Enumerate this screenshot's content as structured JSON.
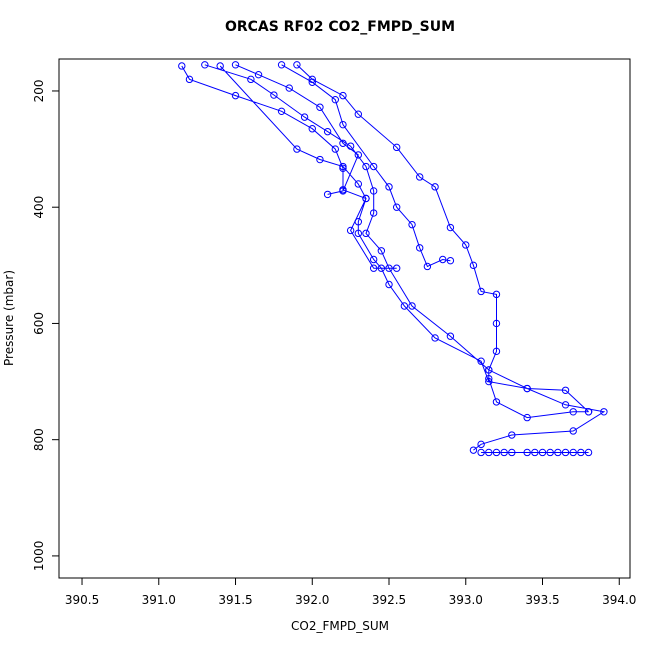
{
  "chart_data": {
    "type": "line",
    "title": "ORCAS RF02 CO2_FMPD_SUM",
    "x_label": "CO2_FMPD_SUM",
    "y_label": "Pressure (mbar)",
    "color": "#0000ff",
    "marker": "circle",
    "xlim": [
      390.35,
      394.07
    ],
    "ylim": [
      1038,
      145
    ],
    "xticks": [
      390.5,
      {
        "value": 391,
        "label": "391.0"
      },
      391.5,
      {
        "value": 392,
        "label": "392.0"
      },
      392.5,
      {
        "value": 393,
        "label": "393.0"
      },
      393.5,
      {
        "value": 394,
        "label": "394.0"
      }
    ],
    "yticks": [
      200,
      400,
      600,
      800,
      1000
    ],
    "x": [
      391.15,
      391.2,
      391.5,
      391.8,
      392.0,
      392.15,
      392.2,
      392.2,
      392.35,
      392.3,
      392.3,
      392.4,
      392.45,
      392.5,
      392.6,
      392.8,
      393.1,
      393.15,
      393.4,
      393.65,
      393.9,
      393.7,
      393.3,
      393.1,
      393.05,
      null,
      391.3,
      391.6,
      391.75,
      391.95,
      392.1,
      392.25,
      392.35,
      392.4,
      392.4,
      392.35,
      392.45,
      392.5,
      392.65,
      392.9,
      393.15,
      393.15,
      393.2,
      393.4,
      393.7,
      393.8,
      null,
      391.9,
      392.0,
      392.2,
      392.3,
      392.55,
      392.7,
      392.8,
      392.9,
      393.0,
      393.05,
      393.1,
      393.2,
      393.2,
      393.2,
      393.15,
      393.4,
      393.65,
      393.8,
      null,
      391.8,
      392.0,
      392.15,
      392.2,
      392.4,
      392.5,
      392.55,
      392.65,
      392.7,
      392.75,
      392.85,
      392.9,
      null,
      391.5,
      391.65,
      391.85,
      392.05,
      392.2,
      392.3,
      392.2,
      392.1,
      null,
      393.1,
      393.15,
      393.2,
      393.25,
      393.3,
      393.4,
      393.45,
      393.5,
      393.55,
      393.6,
      393.65,
      393.7,
      393.75,
      393.8,
      null,
      391.4,
      391.9,
      392.05,
      392.2,
      392.3,
      392.35,
      392.25,
      392.4,
      392.55
    ],
    "values": [
      157,
      180,
      208,
      235,
      265,
      300,
      333,
      370,
      385,
      425,
      445,
      490,
      505,
      533,
      570,
      625,
      665,
      700,
      712,
      740,
      752,
      785,
      792,
      808,
      818,
      null,
      155,
      180,
      207,
      245,
      270,
      295,
      330,
      372,
      410,
      445,
      475,
      505,
      570,
      622,
      680,
      695,
      735,
      762,
      752,
      752,
      null,
      155,
      180,
      208,
      240,
      297,
      348,
      365,
      435,
      465,
      500,
      545,
      550,
      600,
      648,
      680,
      712,
      715,
      752,
      null,
      155,
      185,
      215,
      258,
      330,
      365,
      400,
      430,
      470,
      502,
      490,
      492,
      null,
      155,
      172,
      195,
      228,
      290,
      310,
      372,
      378,
      null,
      822,
      822,
      822,
      822,
      822,
      822,
      822,
      822,
      822,
      822,
      822,
      822,
      822,
      822,
      null,
      157,
      300,
      318,
      330,
      360,
      385,
      440,
      505,
      505
    ]
  }
}
